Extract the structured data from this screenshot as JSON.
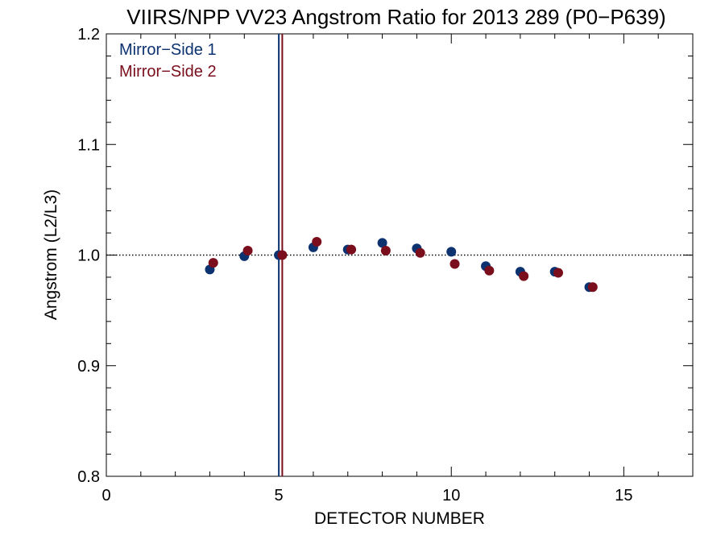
{
  "chart_data": {
    "type": "scatter",
    "title": "VIIRS/NPP VV23 Angstrom Ratio for 2013 289 (P0−P639)",
    "xlabel": "DETECTOR NUMBER",
    "ylabel": "Angstrom (L2/L3)",
    "xlim": [
      0,
      17
    ],
    "ylim": [
      0.8,
      1.2
    ],
    "x_ticks": [
      0,
      5,
      10,
      15
    ],
    "x_tick_labels": [
      "0",
      "5",
      "10",
      "15"
    ],
    "y_ticks": [
      0.8,
      0.9,
      1.0,
      1.1,
      1.2
    ],
    "y_tick_labels": [
      "0.8",
      "0.9",
      "1.0",
      "1.1",
      "1.2"
    ],
    "reference_line": {
      "y": 1.0,
      "style": "dotted"
    },
    "legend_position": "top-left",
    "series": [
      {
        "name": "Mirror−Side 1",
        "color": "#0d3270",
        "x": [
          3,
          4,
          5,
          6,
          7,
          8,
          9,
          10,
          11,
          12,
          13,
          14
        ],
        "y": [
          0.987,
          0.999,
          1.0,
          1.007,
          1.005,
          1.011,
          1.006,
          1.003,
          0.99,
          0.985,
          0.985,
          0.971
        ],
        "vline_x": 5.0
      },
      {
        "name": "Mirror−Side 2",
        "color": "#7a0e1c",
        "x": [
          3.1,
          4.1,
          5.1,
          6.1,
          7.1,
          8.1,
          9.1,
          10.1,
          11.1,
          12.1,
          13.1,
          14.1
        ],
        "y": [
          0.993,
          1.004,
          1.0,
          1.012,
          1.005,
          1.004,
          1.002,
          0.992,
          0.986,
          0.981,
          0.984,
          0.971
        ],
        "vline_x": 5.1
      }
    ]
  }
}
